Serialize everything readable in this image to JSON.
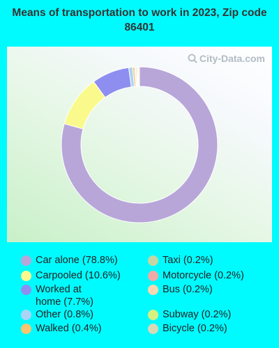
{
  "chart_data": {
    "type": "pie",
    "variant": "donut",
    "title": "Means of transportation to work in 2023, Zip code 86401",
    "slices": [
      {
        "label": "Car alone",
        "value": 78.8,
        "color": "#b8a6d9"
      },
      {
        "label": "Carpooled",
        "value": 10.6,
        "color": "#fafa8c"
      },
      {
        "label": "Worked at home",
        "value": 7.7,
        "color": "#8e8ef0"
      },
      {
        "label": "Other",
        "value": 0.8,
        "color": "#aad4f5"
      },
      {
        "label": "Walked",
        "value": 0.4,
        "color": "#f7c66f"
      },
      {
        "label": "Taxi",
        "value": 0.2,
        "color": "#c5d6a4"
      },
      {
        "label": "Motorcycle",
        "value": 0.2,
        "color": "#f0aaa6"
      },
      {
        "label": "Bus",
        "value": 0.2,
        "color": "#f9d8b0"
      },
      {
        "label": "Subway",
        "value": 0.2,
        "color": "#d8f07e"
      },
      {
        "label": "Bicycle",
        "value": 0.2,
        "color": "#d9d9b8"
      }
    ],
    "legend_position": "bottom"
  },
  "legend": {
    "items": [
      "Car alone (78.8%)",
      "Carpooled (10.6%)",
      "Worked at home (7.7%)",
      "Other (0.8%)",
      "Walked (0.4%)",
      "Taxi (0.2%)",
      "Motorcycle (0.2%)",
      "Bus (0.2%)",
      "Subway (0.2%)",
      "Bicycle (0.2%)"
    ]
  },
  "watermark": {
    "text": "City-Data.com",
    "icon": "magnifier-icon"
  },
  "colors": {
    "background": "#00fbff"
  }
}
